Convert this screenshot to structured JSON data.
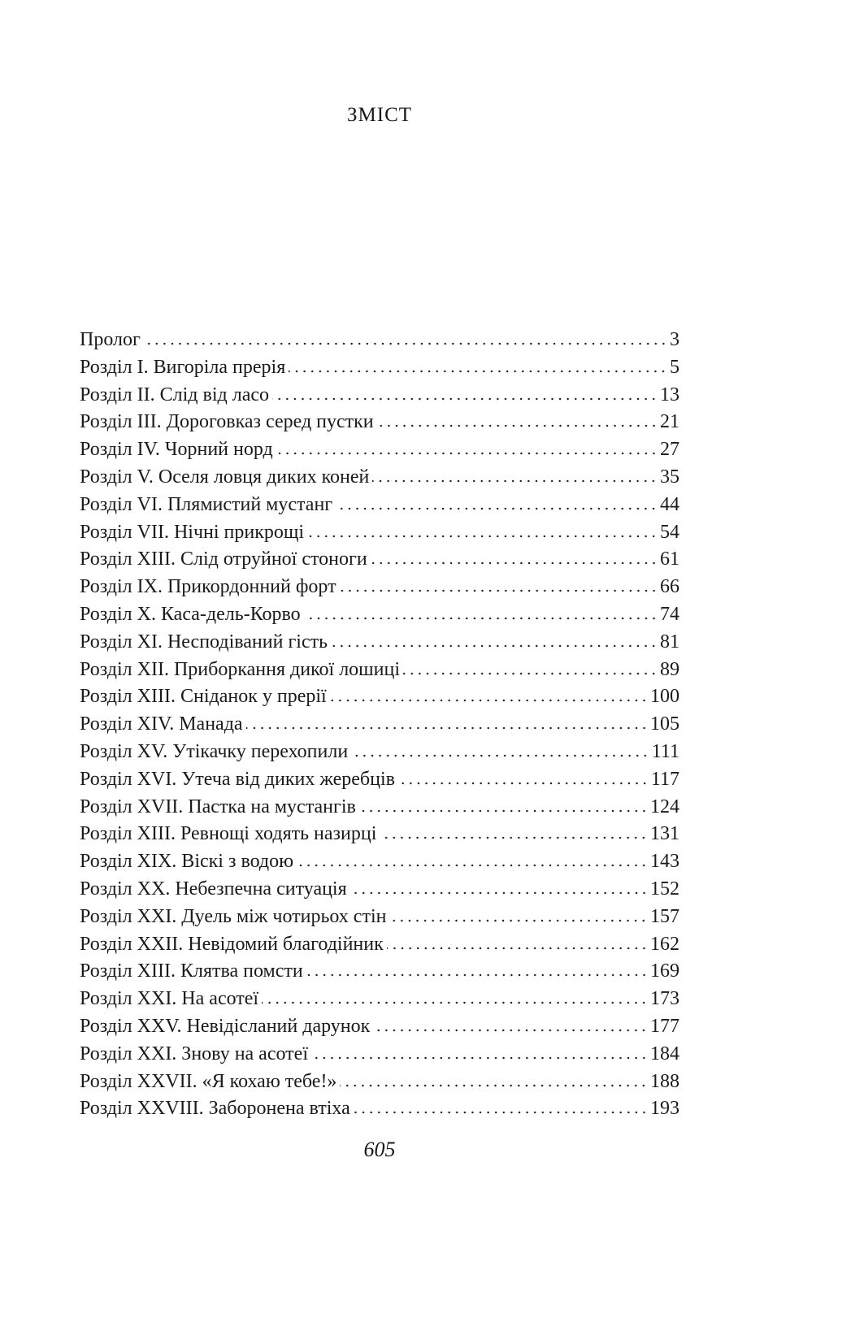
{
  "title": "ЗМІСТ",
  "entries": [
    {
      "label": "Пролог",
      "page": "3"
    },
    {
      "label": "Розділ I. Вигоріла прерія",
      "page": "5"
    },
    {
      "label": "Розділ II. Слід від ласо",
      "page": "13"
    },
    {
      "label": "Розділ III. Дороговказ серед пустки",
      "page": "21"
    },
    {
      "label": "Розділ IV. Чорний норд",
      "page": "27"
    },
    {
      "label": "Розділ V. Оселя ловця диких коней",
      "page": "35"
    },
    {
      "label": "Розділ VI. Плямистий мустанг",
      "page": "44"
    },
    {
      "label": "Розділ VII. Нічні прикрощі",
      "page": "54"
    },
    {
      "label": "Розділ XIII. Слід отруйної стоноги",
      "page": "61"
    },
    {
      "label": "Розділ IX. Прикордонний форт",
      "page": "66"
    },
    {
      "label": "Розділ X. Каса-дель-Корво",
      "page": "74"
    },
    {
      "label": "Розділ XI. Несподіваний гість",
      "page": "81"
    },
    {
      "label": "Розділ XII. Приборкання дикої лошиці",
      "page": "89"
    },
    {
      "label": "Розділ XIII. Сніданок у прерії",
      "page": "100"
    },
    {
      "label": "Розділ XIV. Манада",
      "page": "105"
    },
    {
      "label": "Розділ XV. Утікачку перехопили",
      "page": "111"
    },
    {
      "label": "Розділ XVI. Утеча від диких жеребців",
      "page": "117"
    },
    {
      "label": "Розділ XVII. Пастка на мустангів",
      "page": "124"
    },
    {
      "label": "Розділ XIII. Ревнощі ходять назирці",
      "page": "131"
    },
    {
      "label": "Розділ XIX. Віскі з водою",
      "page": "143"
    },
    {
      "label": "Розділ XX. Небезпечна ситуація",
      "page": "152"
    },
    {
      "label": "Розділ XXI. Дуель між чотирьох стін",
      "page": "157"
    },
    {
      "label": "Розділ XXII. Невідомий благодійник",
      "page": "162"
    },
    {
      "label": "Розділ XIII. Клятва помсти",
      "page": "169"
    },
    {
      "label": "Розділ XXI. На асотеї",
      "page": "173"
    },
    {
      "label": "Розділ XXV. Невідісланий дарунок",
      "page": "177"
    },
    {
      "label": "Розділ XXI. Знову на асотеї",
      "page": "184"
    },
    {
      "label": "Розділ XXVII. «Я кохаю тебе!»",
      "page": "188"
    },
    {
      "label": "Розділ XXVIII. Заборонена втіха",
      "page": "193"
    }
  ],
  "page_number": "605"
}
